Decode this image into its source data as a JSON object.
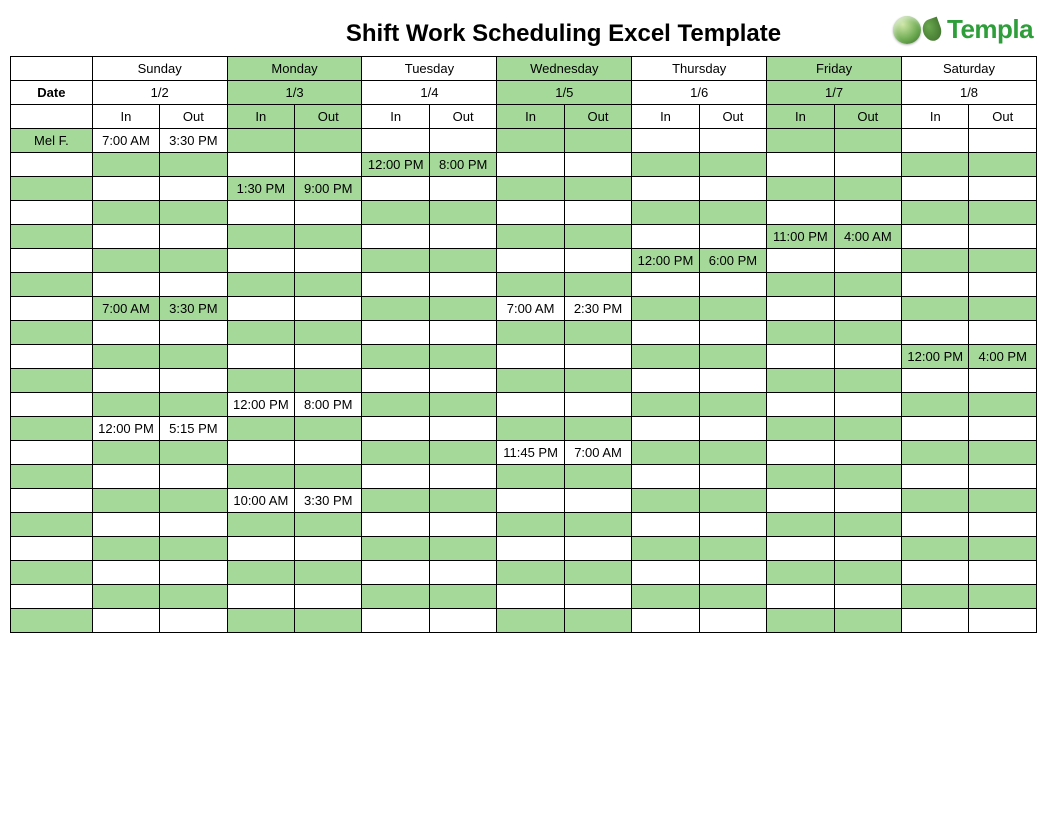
{
  "title": "Shift Work Scheduling Excel Template",
  "logo_text": "Templa",
  "date_label": "Date",
  "in_label": "In",
  "out_label": "Out",
  "colors": {
    "shade": "#a5d99a",
    "border": "#000000",
    "background": "#ffffff",
    "logo_text": "#2e9e3a"
  },
  "days": [
    {
      "name": "Sunday",
      "date": "1/2",
      "shaded": false
    },
    {
      "name": "Monday",
      "date": "1/3",
      "shaded": true
    },
    {
      "name": "Tuesday",
      "date": "1/4",
      "shaded": false
    },
    {
      "name": "Wednesday",
      "date": "1/5",
      "shaded": true
    },
    {
      "name": "Thursday",
      "date": "1/6",
      "shaded": false
    },
    {
      "name": "Friday",
      "date": "1/7",
      "shaded": true
    },
    {
      "name": "Saturday",
      "date": "1/8",
      "shaded": false
    }
  ],
  "rows": [
    {
      "name": "Mel F.",
      "cells": [
        [
          "7:00 AM",
          "3:30 PM"
        ],
        [
          "",
          ""
        ],
        [
          "",
          ""
        ],
        [
          "",
          ""
        ],
        [
          "",
          ""
        ],
        [
          "",
          ""
        ],
        [
          "",
          ""
        ]
      ]
    },
    {
      "name": "",
      "cells": [
        [
          "",
          ""
        ],
        [
          "",
          ""
        ],
        [
          "12:00 PM",
          "8:00 PM"
        ],
        [
          "",
          ""
        ],
        [
          "",
          ""
        ],
        [
          "",
          ""
        ],
        [
          "",
          ""
        ]
      ]
    },
    {
      "name": "",
      "cells": [
        [
          "",
          ""
        ],
        [
          "1:30 PM",
          "9:00 PM"
        ],
        [
          "",
          ""
        ],
        [
          "",
          ""
        ],
        [
          "",
          ""
        ],
        [
          "",
          ""
        ],
        [
          "",
          ""
        ]
      ]
    },
    {
      "name": "",
      "cells": [
        [
          "",
          ""
        ],
        [
          "",
          ""
        ],
        [
          "",
          ""
        ],
        [
          "",
          ""
        ],
        [
          "",
          ""
        ],
        [
          "",
          ""
        ],
        [
          "",
          ""
        ]
      ]
    },
    {
      "name": "",
      "cells": [
        [
          "",
          ""
        ],
        [
          "",
          ""
        ],
        [
          "",
          ""
        ],
        [
          "",
          ""
        ],
        [
          "",
          ""
        ],
        [
          "11:00 PM",
          "4:00 AM"
        ],
        [
          "",
          ""
        ]
      ]
    },
    {
      "name": "",
      "cells": [
        [
          "",
          ""
        ],
        [
          "",
          ""
        ],
        [
          "",
          ""
        ],
        [
          "",
          ""
        ],
        [
          "12:00 PM",
          "6:00 PM"
        ],
        [
          "",
          ""
        ],
        [
          "",
          ""
        ]
      ]
    },
    {
      "name": "",
      "cells": [
        [
          "",
          ""
        ],
        [
          "",
          ""
        ],
        [
          "",
          ""
        ],
        [
          "",
          ""
        ],
        [
          "",
          ""
        ],
        [
          "",
          ""
        ],
        [
          "",
          ""
        ]
      ]
    },
    {
      "name": "",
      "cells": [
        [
          "7:00 AM",
          "3:30 PM"
        ],
        [
          "",
          ""
        ],
        [
          "",
          ""
        ],
        [
          "7:00 AM",
          "2:30 PM"
        ],
        [
          "",
          ""
        ],
        [
          "",
          ""
        ],
        [
          "",
          ""
        ]
      ]
    },
    {
      "name": "",
      "cells": [
        [
          "",
          ""
        ],
        [
          "",
          ""
        ],
        [
          "",
          ""
        ],
        [
          "",
          ""
        ],
        [
          "",
          ""
        ],
        [
          "",
          ""
        ],
        [
          "",
          ""
        ]
      ]
    },
    {
      "name": "",
      "cells": [
        [
          "",
          ""
        ],
        [
          "",
          ""
        ],
        [
          "",
          ""
        ],
        [
          "",
          ""
        ],
        [
          "",
          ""
        ],
        [
          "",
          ""
        ],
        [
          "12:00 PM",
          "4:00 PM"
        ]
      ]
    },
    {
      "name": "",
      "cells": [
        [
          "",
          ""
        ],
        [
          "",
          ""
        ],
        [
          "",
          ""
        ],
        [
          "",
          ""
        ],
        [
          "",
          ""
        ],
        [
          "",
          ""
        ],
        [
          "",
          ""
        ]
      ]
    },
    {
      "name": "",
      "cells": [
        [
          "",
          ""
        ],
        [
          "12:00 PM",
          "8:00 PM"
        ],
        [
          "",
          ""
        ],
        [
          "",
          ""
        ],
        [
          "",
          ""
        ],
        [
          "",
          ""
        ],
        [
          "",
          ""
        ]
      ]
    },
    {
      "name": "",
      "cells": [
        [
          "12:00 PM",
          "5:15 PM"
        ],
        [
          "",
          ""
        ],
        [
          "",
          ""
        ],
        [
          "",
          ""
        ],
        [
          "",
          ""
        ],
        [
          "",
          ""
        ],
        [
          "",
          ""
        ]
      ]
    },
    {
      "name": "",
      "cells": [
        [
          "",
          ""
        ],
        [
          "",
          ""
        ],
        [
          "",
          ""
        ],
        [
          "11:45 PM",
          "7:00 AM"
        ],
        [
          "",
          ""
        ],
        [
          "",
          ""
        ],
        [
          "",
          ""
        ]
      ]
    },
    {
      "name": "",
      "cells": [
        [
          "",
          ""
        ],
        [
          "",
          ""
        ],
        [
          "",
          ""
        ],
        [
          "",
          ""
        ],
        [
          "",
          ""
        ],
        [
          "",
          ""
        ],
        [
          "",
          ""
        ]
      ]
    },
    {
      "name": "",
      "cells": [
        [
          "",
          ""
        ],
        [
          "10:00 AM",
          "3:30 PM"
        ],
        [
          "",
          ""
        ],
        [
          "",
          ""
        ],
        [
          "",
          ""
        ],
        [
          "",
          ""
        ],
        [
          "",
          ""
        ]
      ]
    },
    {
      "name": "",
      "cells": [
        [
          "",
          ""
        ],
        [
          "",
          ""
        ],
        [
          "",
          ""
        ],
        [
          "",
          ""
        ],
        [
          "",
          ""
        ],
        [
          "",
          ""
        ],
        [
          "",
          ""
        ]
      ]
    },
    {
      "name": "",
      "cells": [
        [
          "",
          ""
        ],
        [
          "",
          ""
        ],
        [
          "",
          ""
        ],
        [
          "",
          ""
        ],
        [
          "",
          ""
        ],
        [
          "",
          ""
        ],
        [
          "",
          ""
        ]
      ]
    },
    {
      "name": "",
      "cells": [
        [
          "",
          ""
        ],
        [
          "",
          ""
        ],
        [
          "",
          ""
        ],
        [
          "",
          ""
        ],
        [
          "",
          ""
        ],
        [
          "",
          ""
        ],
        [
          "",
          ""
        ]
      ]
    },
    {
      "name": "",
      "cells": [
        [
          "",
          ""
        ],
        [
          "",
          ""
        ],
        [
          "",
          ""
        ],
        [
          "",
          ""
        ],
        [
          "",
          ""
        ],
        [
          "",
          ""
        ],
        [
          "",
          ""
        ]
      ]
    },
    {
      "name": "",
      "cells": [
        [
          "",
          ""
        ],
        [
          "",
          ""
        ],
        [
          "",
          ""
        ],
        [
          "",
          ""
        ],
        [
          "",
          ""
        ],
        [
          "",
          ""
        ],
        [
          "",
          ""
        ]
      ]
    }
  ]
}
